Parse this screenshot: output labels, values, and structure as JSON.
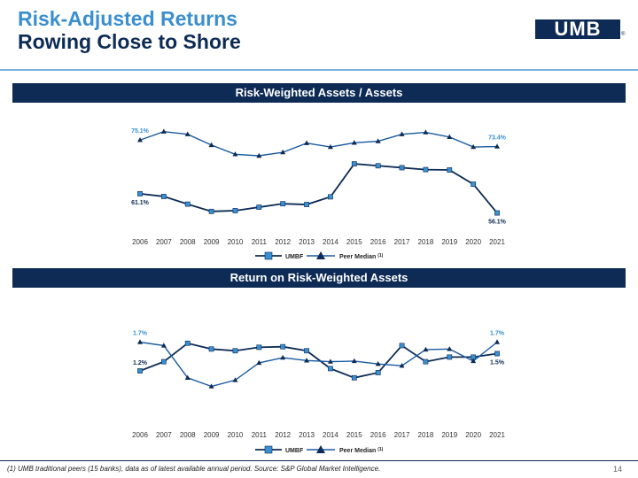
{
  "header": {
    "title_line1": "Risk-Adjusted Returns",
    "title_line2": "Rowing Close to Shore",
    "logo_text": "UMB",
    "logo_mark": "®"
  },
  "colors": {
    "title": "#3a8fd0",
    "navy": "#0d2b55",
    "peer": "#1a5aa0",
    "marker_fill": "#3a8fd0",
    "label_blue": "#3a8fd0"
  },
  "chart_data": [
    {
      "type": "line",
      "title": "Risk-Weighted Assets / Assets",
      "x": [
        "2006",
        "2007",
        "2008",
        "2009",
        "2010",
        "2011",
        "2012",
        "2013",
        "2014",
        "2015",
        "2016",
        "2017",
        "2018",
        "2019",
        "2020",
        "2021"
      ],
      "ylim": [
        53,
        77
      ],
      "grid": false,
      "legend": "bottom",
      "series": [
        {
          "name": "UMBF",
          "values": [
            61.1,
            60.4,
            58.4,
            56.5,
            56.7,
            57.6,
            58.5,
            58.3,
            60.3,
            68.9,
            68.4,
            67.9,
            67.4,
            67.3,
            63.6,
            56.1
          ]
        },
        {
          "name": "Peer Median (1)",
          "values": [
            75.1,
            77.3,
            76.6,
            73.8,
            71.4,
            71.0,
            71.9,
            74.3,
            73.3,
            74.4,
            74.8,
            76.6,
            77.1,
            75.9,
            73.3,
            73.4
          ]
        }
      ],
      "data_labels": [
        {
          "text": "75.1%",
          "series": 1,
          "index": 0,
          "pos": "above",
          "color": "blue"
        },
        {
          "text": "73.4%",
          "series": 1,
          "index": 15,
          "pos": "above",
          "color": "blue"
        },
        {
          "text": "61.1%",
          "series": 0,
          "index": 0,
          "pos": "below",
          "color": "navy"
        },
        {
          "text": "56.1%",
          "series": 0,
          "index": 15,
          "pos": "below",
          "color": "navy"
        }
      ]
    },
    {
      "type": "line",
      "title": "Return on Risk-Weighted Assets",
      "x": [
        "2006",
        "2007",
        "2008",
        "2009",
        "2010",
        "2011",
        "2012",
        "2013",
        "2014",
        "2015",
        "2016",
        "2017",
        "2018",
        "2019",
        "2020",
        "2021"
      ],
      "ylim": [
        0.8,
        2.0
      ],
      "grid": false,
      "legend": "bottom",
      "series": [
        {
          "name": "UMBF",
          "values": [
            1.2,
            1.36,
            1.68,
            1.58,
            1.55,
            1.61,
            1.62,
            1.55,
            1.24,
            1.08,
            1.17,
            1.64,
            1.36,
            1.44,
            1.44,
            1.5
          ]
        },
        {
          "name": "Peer Median (1)",
          "values": [
            1.7,
            1.64,
            1.08,
            0.93,
            1.04,
            1.34,
            1.43,
            1.38,
            1.36,
            1.37,
            1.32,
            1.29,
            1.57,
            1.58,
            1.37,
            1.7
          ]
        }
      ],
      "data_labels": [
        {
          "text": "1.7%",
          "series": 1,
          "index": 0,
          "pos": "above",
          "color": "blue"
        },
        {
          "text": "1.7%",
          "series": 1,
          "index": 15,
          "pos": "above",
          "color": "blue"
        },
        {
          "text": "1.2%",
          "series": 0,
          "index": 0,
          "pos": "left-above",
          "color": "navy"
        },
        {
          "text": "1.5%",
          "series": 0,
          "index": 15,
          "pos": "below",
          "color": "navy"
        }
      ]
    }
  ],
  "footer": {
    "footnote": "(1) UMB traditional peers (15 banks), data as of latest available annual period. Source: S&P Global Market Intelligence.",
    "page": "14"
  }
}
